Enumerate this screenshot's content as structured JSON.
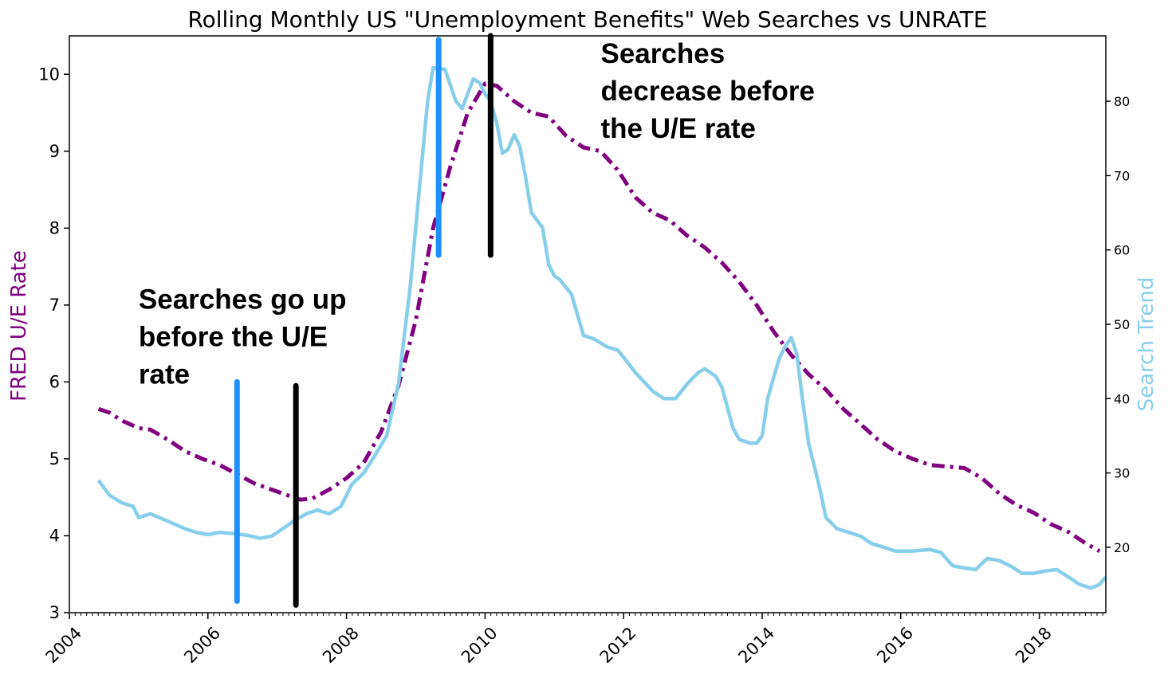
{
  "chart_data": {
    "type": "line",
    "title": "Rolling Monthly US \"Unemployment Benefits\" Web Searches vs UNRATE",
    "ylabel_left": "FRED U/E Rate",
    "ylabel_right": "Search Trend",
    "xlim": [
      2004.0,
      2018.96
    ],
    "ylim_left": [
      3,
      10.5
    ],
    "ylim_right": [
      11.2,
      88.8
    ],
    "x_ticks": [
      "2004",
      "2006",
      "2008",
      "2010",
      "2012",
      "2014",
      "2016",
      "2018"
    ],
    "y_left_ticks": [
      "3",
      "4",
      "5",
      "6",
      "7",
      "8",
      "9",
      "10"
    ],
    "y_right_ticks": [
      "20",
      "30",
      "40",
      "50",
      "60",
      "70",
      "80"
    ],
    "grid": false,
    "colors": {
      "unrate": "#800080",
      "search": "#87ceeb",
      "blue_marker": "#1e90ff",
      "black_marker": "#000000"
    },
    "series": [
      {
        "axis": "left",
        "style": "dashdot",
        "points": [
          [
            2004.42,
            5.65
          ],
          [
            2004.58,
            5.6
          ],
          [
            2004.75,
            5.5
          ],
          [
            2005.0,
            5.4
          ],
          [
            2005.17,
            5.38
          ],
          [
            2005.42,
            5.25
          ],
          [
            2005.67,
            5.1
          ],
          [
            2005.92,
            5.0
          ],
          [
            2006.17,
            4.92
          ],
          [
            2006.42,
            4.8
          ],
          [
            2006.67,
            4.68
          ],
          [
            2006.92,
            4.6
          ],
          [
            2007.17,
            4.52
          ],
          [
            2007.33,
            4.47
          ],
          [
            2007.5,
            4.48
          ],
          [
            2007.75,
            4.6
          ],
          [
            2008.0,
            4.75
          ],
          [
            2008.25,
            4.95
          ],
          [
            2008.5,
            5.35
          ],
          [
            2008.75,
            5.95
          ],
          [
            2009.0,
            6.8
          ],
          [
            2009.25,
            8.0
          ],
          [
            2009.5,
            8.8
          ],
          [
            2009.75,
            9.5
          ],
          [
            2010.0,
            9.88
          ],
          [
            2010.17,
            9.85
          ],
          [
            2010.42,
            9.65
          ],
          [
            2010.67,
            9.5
          ],
          [
            2010.92,
            9.45
          ],
          [
            2011.17,
            9.2
          ],
          [
            2011.42,
            9.05
          ],
          [
            2011.67,
            9.0
          ],
          [
            2011.92,
            8.75
          ],
          [
            2012.17,
            8.4
          ],
          [
            2012.42,
            8.2
          ],
          [
            2012.67,
            8.1
          ],
          [
            2012.92,
            7.9
          ],
          [
            2013.17,
            7.75
          ],
          [
            2013.42,
            7.55
          ],
          [
            2013.67,
            7.3
          ],
          [
            2013.92,
            7.0
          ],
          [
            2014.17,
            6.65
          ],
          [
            2014.42,
            6.35
          ],
          [
            2014.67,
            6.1
          ],
          [
            2014.92,
            5.9
          ],
          [
            2015.17,
            5.65
          ],
          [
            2015.42,
            5.45
          ],
          [
            2015.67,
            5.25
          ],
          [
            2015.92,
            5.1
          ],
          [
            2016.17,
            5.0
          ],
          [
            2016.42,
            4.92
          ],
          [
            2016.67,
            4.9
          ],
          [
            2016.92,
            4.88
          ],
          [
            2017.17,
            4.75
          ],
          [
            2017.42,
            4.55
          ],
          [
            2017.67,
            4.4
          ],
          [
            2017.92,
            4.3
          ],
          [
            2018.17,
            4.15
          ],
          [
            2018.42,
            4.05
          ],
          [
            2018.67,
            3.9
          ],
          [
            2018.87,
            3.8
          ]
        ]
      },
      {
        "axis": "right",
        "style": "solid",
        "points": [
          [
            2004.42,
            29
          ],
          [
            2004.58,
            27
          ],
          [
            2004.75,
            26
          ],
          [
            2004.92,
            25.5
          ],
          [
            2005.0,
            24
          ],
          [
            2005.17,
            24.5
          ],
          [
            2005.42,
            23.5
          ],
          [
            2005.67,
            22.5
          ],
          [
            2005.83,
            22
          ],
          [
            2006.0,
            21.7
          ],
          [
            2006.17,
            22
          ],
          [
            2006.42,
            21.8
          ],
          [
            2006.58,
            21.6
          ],
          [
            2006.75,
            21.2
          ],
          [
            2006.92,
            21.5
          ],
          [
            2007.08,
            22.5
          ],
          [
            2007.25,
            23.6
          ],
          [
            2007.42,
            24.5
          ],
          [
            2007.58,
            25
          ],
          [
            2007.75,
            24.5
          ],
          [
            2007.92,
            25.5
          ],
          [
            2008.08,
            28.5
          ],
          [
            2008.25,
            30
          ],
          [
            2008.42,
            32.5
          ],
          [
            2008.58,
            35
          ],
          [
            2008.75,
            42
          ],
          [
            2008.92,
            55
          ],
          [
            2009.08,
            71
          ],
          [
            2009.17,
            80
          ],
          [
            2009.25,
            84.5
          ],
          [
            2009.42,
            84.3
          ],
          [
            2009.58,
            80
          ],
          [
            2009.67,
            79
          ],
          [
            2009.83,
            83
          ],
          [
            2009.92,
            82.5
          ],
          [
            2010.0,
            81
          ],
          [
            2010.08,
            80
          ],
          [
            2010.17,
            77
          ],
          [
            2010.25,
            73
          ],
          [
            2010.33,
            73.5
          ],
          [
            2010.42,
            75.5
          ],
          [
            2010.5,
            74
          ],
          [
            2010.58,
            70
          ],
          [
            2010.67,
            65
          ],
          [
            2010.83,
            63
          ],
          [
            2010.92,
            58
          ],
          [
            2011.0,
            56.5
          ],
          [
            2011.08,
            56
          ],
          [
            2011.25,
            54
          ],
          [
            2011.42,
            48.5
          ],
          [
            2011.58,
            48
          ],
          [
            2011.75,
            47
          ],
          [
            2011.92,
            46.5
          ],
          [
            2012.17,
            43.5
          ],
          [
            2012.42,
            41
          ],
          [
            2012.58,
            40
          ],
          [
            2012.75,
            40
          ],
          [
            2012.92,
            42
          ],
          [
            2013.08,
            43.5
          ],
          [
            2013.17,
            44
          ],
          [
            2013.33,
            43
          ],
          [
            2013.42,
            41.5
          ],
          [
            2013.58,
            36
          ],
          [
            2013.67,
            34.5
          ],
          [
            2013.83,
            34
          ],
          [
            2013.92,
            34
          ],
          [
            2014.0,
            35
          ],
          [
            2014.08,
            40
          ],
          [
            2014.17,
            43
          ],
          [
            2014.25,
            45.5
          ],
          [
            2014.33,
            47
          ],
          [
            2014.42,
            48.2
          ],
          [
            2014.5,
            46
          ],
          [
            2014.58,
            40
          ],
          [
            2014.67,
            34
          ],
          [
            2014.83,
            28
          ],
          [
            2014.92,
            24
          ],
          [
            2015.08,
            22.5
          ],
          [
            2015.25,
            22
          ],
          [
            2015.42,
            21.5
          ],
          [
            2015.58,
            20.5
          ],
          [
            2015.75,
            20
          ],
          [
            2015.92,
            19.5
          ],
          [
            2016.17,
            19.5
          ],
          [
            2016.42,
            19.7
          ],
          [
            2016.58,
            19.3
          ],
          [
            2016.75,
            17.5
          ],
          [
            2016.92,
            17.2
          ],
          [
            2017.08,
            17
          ],
          [
            2017.25,
            18.5
          ],
          [
            2017.42,
            18.2
          ],
          [
            2017.58,
            17.5
          ],
          [
            2017.75,
            16.5
          ],
          [
            2017.92,
            16.5
          ],
          [
            2018.08,
            16.8
          ],
          [
            2018.25,
            17
          ],
          [
            2018.42,
            16
          ],
          [
            2018.58,
            15
          ],
          [
            2018.75,
            14.5
          ],
          [
            2018.87,
            15
          ],
          [
            2018.96,
            16
          ]
        ]
      }
    ],
    "markers": [
      {
        "x": 2006.42,
        "y_top": 6.0,
        "y_bottom": 3.15,
        "color": "blue"
      },
      {
        "x": 2007.27,
        "y_top": 5.95,
        "y_bottom": 3.1,
        "color": "black"
      },
      {
        "x": 2009.33,
        "y_top": 10.45,
        "y_bottom": 7.65,
        "color": "blue"
      },
      {
        "x": 2010.08,
        "y_top": 10.5,
        "y_bottom": 7.65,
        "color": "black"
      }
    ],
    "annotations": [
      {
        "lines": [
          "Searches go up",
          "before the U/E",
          "rate"
        ],
        "x": 2005.0,
        "y": 6.95
      },
      {
        "lines": [
          "Searches",
          "decrease before",
          "the U/E rate"
        ],
        "x": 2011.67,
        "y": 10.15
      }
    ]
  }
}
